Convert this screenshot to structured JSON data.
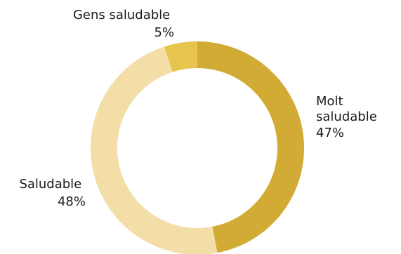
{
  "chart_data": {
    "type": "pie",
    "variant": "donut",
    "title": "",
    "slices": [
      {
        "name": "Molt saludable",
        "label_lines": [
          "Molt",
          "saludable"
        ],
        "value": 47,
        "value_label": "47%",
        "color": "#d2ab35"
      },
      {
        "name": "Saludable",
        "label_lines": [
          "Saludable"
        ],
        "value": 48,
        "value_label": "48%",
        "color": "#f2dea6"
      },
      {
        "name": "Gens saludable",
        "label_lines": [
          "Gens saludable"
        ],
        "value": 5,
        "value_label": "5%",
        "color": "#e6c44e"
      }
    ],
    "start_angle_deg": 0,
    "direction": "clockwise",
    "legend": "none"
  }
}
